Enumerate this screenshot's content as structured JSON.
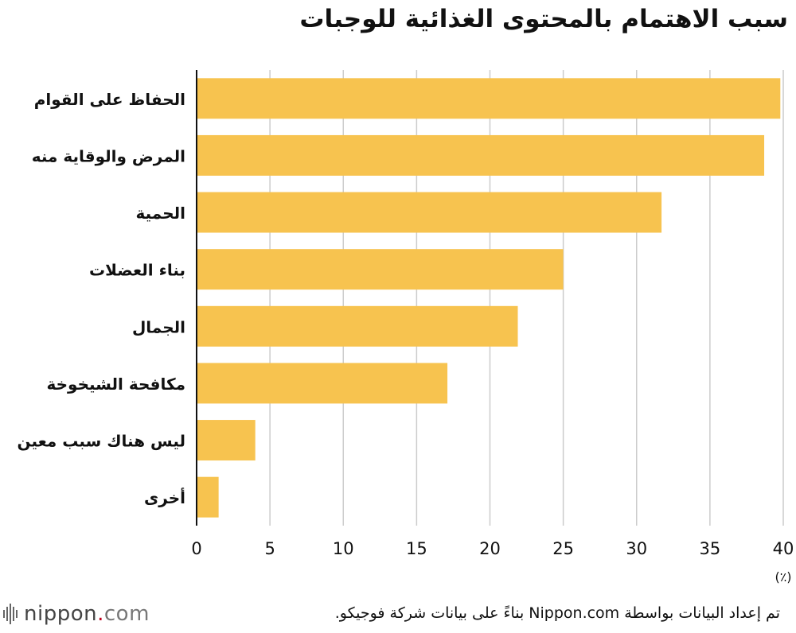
{
  "title": "سبب الاهتمام بالمحتوى الغذائية للوجبات",
  "source_note": "تم إعداد البيانات بواسطة Nippon.com بناءً على بيانات  شركة فوجيكو.",
  "logo": {
    "name": "nippon",
    "dot": ".",
    "tld": "com"
  },
  "colors": {
    "bar": "#F7C34F",
    "grid": "#cccccc",
    "axis": "#111111"
  },
  "chart_data": {
    "type": "bar",
    "orientation": "horizontal",
    "categories": [
      "الحفاظ على القوام",
      "المرض والوقاية منه",
      "الحمية",
      "بناء العضلات",
      "الجمال",
      "مكافحة الشيخوخة",
      "ليس هناك سبب معين",
      "أخرى"
    ],
    "values": [
      39.8,
      38.7,
      31.7,
      25.0,
      21.9,
      17.1,
      4.0,
      1.5
    ],
    "xlim": [
      0,
      40
    ],
    "ticks": [
      0,
      5,
      10,
      15,
      20,
      25,
      30,
      35,
      40
    ],
    "unit_label": "(٪)",
    "grid": true
  }
}
